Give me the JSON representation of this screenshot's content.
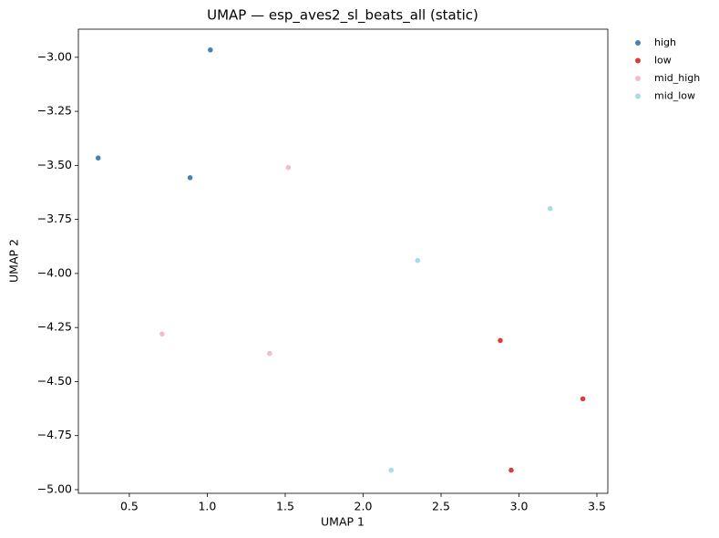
{
  "chart_data": {
    "type": "scatter",
    "title": "UMAP — esp_aves2_sl_beats_all (static)",
    "x_label": "UMAP 1",
    "y_label": "UMAP 2",
    "series": [
      {
        "name": "high",
        "color": "#4682b4",
        "x": [
          1.02,
          0.3,
          0.89
        ],
        "values": [
          -2.966,
          -3.466,
          -3.557
        ]
      },
      {
        "name": "low",
        "color": "#dc3c3c",
        "x": [
          2.88,
          3.41,
          2.95
        ],
        "values": [
          -4.31,
          -4.58,
          -4.91
        ]
      },
      {
        "name": "mid_high",
        "color": "#f4bcc8",
        "x": [
          1.52,
          0.71,
          1.4
        ],
        "values": [
          -3.51,
          -4.28,
          -4.37
        ]
      },
      {
        "name": "mid_low",
        "color": "#a6dcea",
        "x": [
          3.2,
          2.35,
          2.18
        ],
        "values": [
          -3.7,
          -3.94,
          -4.91
        ]
      }
    ],
    "xlim": [
      0.173,
      3.57
    ],
    "xticks": [
      0.5,
      {
        "value": 1,
        "label": "1.0"
      },
      1.5,
      {
        "value": 2,
        "label": "2.0"
      },
      2.5,
      {
        "value": 3,
        "label": "3.0"
      },
      3.5
    ],
    "ylim": [
      -5.017,
      -2.87
    ],
    "yticks": [
      {
        "value": -3,
        "label": "−3.00"
      },
      {
        "value": -3.25,
        "label": "−3.25"
      },
      {
        "value": -3.5,
        "label": "−3.50"
      },
      {
        "value": -3.75,
        "label": "−3.75"
      },
      {
        "value": -4,
        "label": "−4.00"
      },
      {
        "value": -4.25,
        "label": "−4.25"
      },
      {
        "value": -4.5,
        "label": "−4.50"
      },
      {
        "value": -4.75,
        "label": "−4.75"
      },
      {
        "value": -5,
        "label": "−5.00"
      }
    ],
    "grid": false,
    "legend": "right"
  }
}
